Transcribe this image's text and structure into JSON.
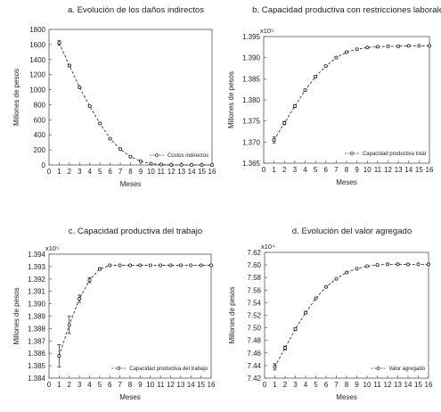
{
  "chart_data": [
    {
      "type": "line",
      "title": "a. Evolución de los daños indirectos",
      "xlabel": "Meses",
      "ylabel": "Millones de pesos",
      "scale_label": "",
      "xlim": [
        0,
        16
      ],
      "ylim": [
        0,
        1800
      ],
      "xticks": [
        "0",
        "1",
        "2",
        "3",
        "4",
        "5",
        "6",
        "7",
        "8",
        "9",
        "10",
        "11",
        "12",
        "13",
        "14",
        "15",
        "16"
      ],
      "yticks": [
        "0",
        "200",
        "400",
        "600",
        "800",
        "1000",
        "1200",
        "1400",
        "1600",
        "1800"
      ],
      "grid": false,
      "legend_position": "bottom-right",
      "series": [
        {
          "name": "Costos indirectos",
          "x": [
            1,
            2,
            3,
            4,
            5,
            6,
            7,
            8,
            9,
            10,
            11,
            12,
            13,
            14,
            15,
            16
          ],
          "y": [
            1620,
            1320,
            1030,
            780,
            550,
            350,
            210,
            110,
            50,
            18,
            6,
            2,
            1,
            0,
            0,
            0
          ],
          "error": [
            30,
            15,
            10,
            8,
            6,
            5,
            4,
            3,
            2,
            1,
            1,
            0,
            0,
            0,
            0,
            0
          ]
        }
      ]
    },
    {
      "type": "line",
      "title": "b. Capacidad productiva con restricciones laborales",
      "xlabel": "Meses",
      "ylabel": "Millones de pesos",
      "scale_label": "x10⁵",
      "xlim": [
        0,
        16
      ],
      "ylim": [
        1.365,
        1.395
      ],
      "xticks": [
        "0",
        "1",
        "2",
        "3",
        "4",
        "5",
        "6",
        "7",
        "8",
        "9",
        "10",
        "11",
        "12",
        "13",
        "14",
        "15",
        "16"
      ],
      "yticks": [
        "1.365",
        "1.370",
        "1.375",
        "1.380",
        "1.385",
        "1.390",
        "1.395"
      ],
      "grid": false,
      "legend_position": "bottom-right",
      "series": [
        {
          "name": "Capacidad productiva total",
          "x": [
            1,
            2,
            3,
            4,
            5,
            6,
            7,
            8,
            9,
            10,
            11,
            12,
            13,
            14,
            15,
            16
          ],
          "y": [
            1.3705,
            1.3745,
            1.3785,
            1.3823,
            1.3855,
            1.388,
            1.39,
            1.3913,
            1.392,
            1.3924,
            1.3926,
            1.3927,
            1.3927,
            1.3928,
            1.3928,
            1.3928
          ],
          "error": [
            0.0007,
            0.0004,
            0.0003,
            0.0002,
            0.0002,
            0.0001,
            0.0001,
            0,
            0,
            0,
            0,
            0,
            0,
            0,
            0,
            0
          ]
        }
      ]
    },
    {
      "type": "line",
      "title": "c. Capacidad productiva del trabajo",
      "xlabel": "Meses",
      "ylabel": "Millones de pesos",
      "scale_label": "x10⁵",
      "xlim": [
        0,
        16
      ],
      "ylim": [
        1.384,
        1.394
      ],
      "xticks": [
        "0",
        "1",
        "2",
        "3",
        "4",
        "5",
        "6",
        "7",
        "8",
        "9",
        "10",
        "11",
        "12",
        "13",
        "14",
        "15",
        "16"
      ],
      "yticks": [
        "1.384",
        "1.385",
        "1.386",
        "1.387",
        "1.388",
        "1.389",
        "1.390",
        "1.391",
        "1.392",
        "1.393",
        "1.394"
      ],
      "grid": false,
      "legend_position": "bottom-right",
      "series": [
        {
          "name": "Capacidad productiva del trabajo",
          "x": [
            1,
            2,
            3,
            4,
            5,
            6,
            7,
            8,
            9,
            10,
            11,
            12,
            13,
            14,
            15,
            16
          ],
          "y": [
            1.3858,
            1.3883,
            1.3904,
            1.3919,
            1.3928,
            1.3931,
            1.3931,
            1.3931,
            1.3931,
            1.3931,
            1.3931,
            1.3931,
            1.3931,
            1.3931,
            1.3931,
            1.3931
          ],
          "error": [
            0.0009,
            0.0007,
            0.0003,
            0.0002,
            0.0001,
            0,
            0,
            0,
            0,
            0,
            0,
            0,
            0,
            0,
            0,
            0
          ]
        }
      ]
    },
    {
      "type": "line",
      "title": "d. Evolución del valor agregado",
      "xlabel": "Meses",
      "ylabel": "Millones de pesos",
      "scale_label": "x10⁴",
      "xlim": [
        0,
        16
      ],
      "ylim": [
        7.42,
        7.62
      ],
      "xticks": [
        "0",
        "1",
        "2",
        "3",
        "4",
        "5",
        "6",
        "7",
        "8",
        "9",
        "10",
        "11",
        "12",
        "13",
        "14",
        "15",
        "16"
      ],
      "yticks": [
        "7.42",
        "7.44",
        "7.46",
        "7.48",
        "7.50",
        "7.52",
        "7.54",
        "7.56",
        "7.58",
        "7.60",
        "7.62"
      ],
      "grid": false,
      "legend_position": "bottom-right",
      "series": [
        {
          "name": "Valor agregado",
          "x": [
            1,
            2,
            3,
            4,
            5,
            6,
            7,
            8,
            9,
            10,
            11,
            12,
            13,
            14,
            15,
            16
          ],
          "y": [
            7.438,
            7.468,
            7.498,
            7.524,
            7.547,
            7.565,
            7.578,
            7.588,
            7.594,
            7.598,
            7.6,
            7.601,
            7.601,
            7.601,
            7.601,
            7.601
          ],
          "error": [
            0.005,
            0.003,
            0.002,
            0.002,
            0.001,
            0.001,
            0,
            0,
            0,
            0,
            0,
            0,
            0,
            0,
            0,
            0
          ]
        }
      ]
    }
  ]
}
